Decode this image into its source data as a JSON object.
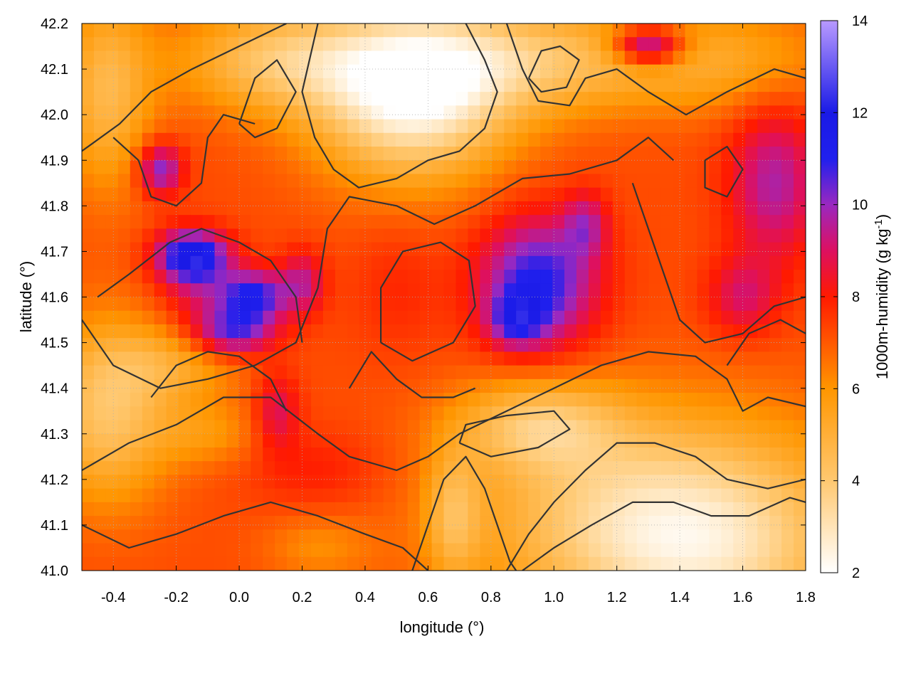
{
  "chart_data": {
    "type": "heatmap",
    "title": "",
    "xlabel": "longitude (°)",
    "ylabel": "latitude (°)",
    "colorbar_label": "1000m-humidity (g kg⁻¹)",
    "colorbar_label_parts": {
      "main": "1000m-humidity (g kg",
      "sup": "-1",
      "end": ")"
    },
    "xlim": [
      -0.5,
      1.8
    ],
    "ylim": [
      41.0,
      42.2
    ],
    "clim": [
      2,
      14
    ],
    "x_ticks": [
      -0.4,
      -0.2,
      0.0,
      0.2,
      0.4,
      0.6,
      0.8,
      1.0,
      1.2,
      1.4,
      1.6,
      1.8
    ],
    "x_tick_labels": [
      "-0.4",
      "-0.2",
      "0.0",
      "0.2",
      "0.4",
      "0.6",
      "0.8",
      "1.0",
      "1.2",
      "1.4",
      "1.6",
      "1.8"
    ],
    "y_ticks": [
      41.0,
      41.1,
      41.2,
      41.3,
      41.4,
      41.5,
      41.6,
      41.7,
      41.8,
      41.9,
      42.0,
      42.1,
      42.2
    ],
    "y_tick_labels": [
      "41.0",
      "41.1",
      "41.2",
      "41.3",
      "41.4",
      "41.5",
      "41.6",
      "41.7",
      "41.8",
      "41.9",
      "42.0",
      "42.1",
      "42.2"
    ],
    "colorbar_ticks": [
      2,
      4,
      6,
      8,
      10,
      12,
      14
    ],
    "colorbar_tick_labels": [
      "2",
      "4",
      "6",
      "8",
      "10",
      "12",
      "14"
    ],
    "grid": true,
    "colormap": [
      {
        "v": 2,
        "color": "#ffffff"
      },
      {
        "v": 4,
        "color": "#ffc870"
      },
      {
        "v": 6,
        "color": "#ff9600"
      },
      {
        "v": 8,
        "color": "#ff1a00"
      },
      {
        "v": 9,
        "color": "#dd1060"
      },
      {
        "v": 10,
        "color": "#9a28c0"
      },
      {
        "v": 11,
        "color": "#2020ee"
      },
      {
        "v": 12,
        "color": "#1a1ae6"
      },
      {
        "v": 14,
        "color": "#b89aff"
      }
    ],
    "field": {
      "base": 7.2,
      "features": [
        {
          "x": 0.55,
          "y": 42.05,
          "sx": 0.22,
          "sy": 0.13,
          "a": -5.2
        },
        {
          "x": 0.12,
          "y": 42.12,
          "sx": 0.22,
          "sy": 0.08,
          "a": -2.8
        },
        {
          "x": 0.95,
          "y": 42.12,
          "sx": 0.3,
          "sy": 0.08,
          "a": -2.6
        },
        {
          "x": 1.55,
          "y": 42.12,
          "sx": 0.25,
          "sy": 0.08,
          "a": -1.6
        },
        {
          "x": -0.42,
          "y": 42.05,
          "sx": 0.1,
          "sy": 0.15,
          "a": -2.5
        },
        {
          "x": 1.35,
          "y": 41.12,
          "sx": 0.4,
          "sy": 0.16,
          "a": -4.0
        },
        {
          "x": 1.5,
          "y": 41.0,
          "sx": 0.3,
          "sy": 0.12,
          "a": -1.5
        },
        {
          "x": 0.95,
          "y": 41.32,
          "sx": 0.18,
          "sy": 0.07,
          "a": -2.6
        },
        {
          "x": -0.42,
          "y": 41.35,
          "sx": 0.14,
          "sy": 0.14,
          "a": -3.0
        },
        {
          "x": -0.2,
          "y": 41.45,
          "sx": 0.15,
          "sy": 0.06,
          "a": -1.5
        },
        {
          "x": -0.1,
          "y": 41.3,
          "sx": 0.12,
          "sy": 0.05,
          "a": -1.2
        },
        {
          "x": 0.68,
          "y": 41.12,
          "sx": 0.06,
          "sy": 0.1,
          "a": -2.0
        },
        {
          "x": 0.25,
          "y": 41.05,
          "sx": 0.12,
          "sy": 0.05,
          "a": -1.0
        },
        {
          "x": 0.95,
          "y": 41.63,
          "sx": 0.13,
          "sy": 0.1,
          "a": 4.0
        },
        {
          "x": 0.88,
          "y": 41.55,
          "sx": 0.06,
          "sy": 0.04,
          "a": 2.5
        },
        {
          "x": 1.1,
          "y": 41.76,
          "sx": 0.05,
          "sy": 0.05,
          "a": 2.0
        },
        {
          "x": -0.15,
          "y": 41.69,
          "sx": 0.08,
          "sy": 0.04,
          "a": 5.0
        },
        {
          "x": 0.05,
          "y": 41.6,
          "sx": 0.07,
          "sy": 0.04,
          "a": 3.6
        },
        {
          "x": -0.02,
          "y": 41.52,
          "sx": 0.09,
          "sy": 0.035,
          "a": 3.2
        },
        {
          "x": 0.2,
          "y": 41.63,
          "sx": 0.05,
          "sy": 0.05,
          "a": 2.2
        },
        {
          "x": -0.1,
          "y": 41.6,
          "sx": 0.1,
          "sy": 0.05,
          "a": 1.6
        },
        {
          "x": -0.25,
          "y": 41.88,
          "sx": 0.05,
          "sy": 0.04,
          "a": 3.2
        },
        {
          "x": 1.3,
          "y": 42.15,
          "sx": 0.08,
          "sy": 0.03,
          "a": 4.2
        },
        {
          "x": 1.7,
          "y": 41.85,
          "sx": 0.1,
          "sy": 0.12,
          "a": 2.5
        },
        {
          "x": 1.6,
          "y": 41.6,
          "sx": 0.08,
          "sy": 0.06,
          "a": 1.8
        },
        {
          "x": 0.12,
          "y": 41.35,
          "sx": 0.05,
          "sy": 0.06,
          "a": 1.8
        },
        {
          "x": 0.5,
          "y": 41.62,
          "sx": 0.1,
          "sy": 0.1,
          "a": 0.6
        },
        {
          "x": 0.25,
          "y": 41.22,
          "sx": 0.15,
          "sy": 0.06,
          "a": 0.8
        }
      ]
    },
    "contours": [
      [
        [
          -0.5,
          41.92
        ],
        [
          -0.38,
          41.98
        ],
        [
          -0.28,
          42.05
        ],
        [
          -0.15,
          42.1
        ],
        [
          0.0,
          42.15
        ],
        [
          0.15,
          42.2
        ]
      ],
      [
        [
          0.25,
          42.2
        ],
        [
          0.2,
          42.05
        ],
        [
          0.24,
          41.95
        ],
        [
          0.3,
          41.88
        ],
        [
          0.38,
          41.84
        ],
        [
          0.5,
          41.86
        ],
        [
          0.6,
          41.9
        ],
        [
          0.7,
          41.92
        ],
        [
          0.78,
          41.97
        ],
        [
          0.82,
          42.05
        ],
        [
          0.78,
          42.12
        ],
        [
          0.72,
          42.2
        ]
      ],
      [
        [
          0.85,
          42.2
        ],
        [
          0.9,
          42.1
        ],
        [
          0.95,
          42.03
        ],
        [
          1.05,
          42.02
        ],
        [
          1.1,
          42.08
        ],
        [
          1.2,
          42.1
        ],
        [
          1.3,
          42.05
        ],
        [
          1.42,
          42.0
        ],
        [
          1.55,
          42.05
        ],
        [
          1.7,
          42.1
        ],
        [
          1.8,
          42.08
        ]
      ],
      [
        [
          -0.5,
          41.55
        ],
        [
          -0.4,
          41.45
        ],
        [
          -0.25,
          41.4
        ],
        [
          -0.1,
          41.42
        ],
        [
          0.05,
          41.45
        ],
        [
          0.18,
          41.5
        ],
        [
          0.25,
          41.62
        ],
        [
          0.28,
          41.75
        ],
        [
          0.35,
          41.82
        ],
        [
          0.5,
          41.8
        ],
        [
          0.62,
          41.76
        ],
        [
          0.75,
          41.8
        ],
        [
          0.9,
          41.86
        ],
        [
          1.05,
          41.87
        ],
        [
          1.2,
          41.9
        ],
        [
          1.3,
          41.95
        ],
        [
          1.38,
          41.9
        ]
      ],
      [
        [
          0.45,
          41.5
        ],
        [
          0.55,
          41.46
        ],
        [
          0.68,
          41.5
        ],
        [
          0.75,
          41.58
        ],
        [
          0.73,
          41.68
        ],
        [
          0.64,
          41.72
        ],
        [
          0.52,
          41.7
        ],
        [
          0.45,
          41.62
        ],
        [
          0.45,
          41.5
        ]
      ],
      [
        [
          -0.5,
          41.22
        ],
        [
          -0.35,
          41.28
        ],
        [
          -0.2,
          41.32
        ],
        [
          -0.05,
          41.38
        ],
        [
          0.1,
          41.38
        ],
        [
          0.25,
          41.3
        ],
        [
          0.35,
          41.25
        ],
        [
          0.5,
          41.22
        ],
        [
          0.6,
          41.25
        ],
        [
          0.7,
          41.3
        ],
        [
          0.85,
          41.35
        ],
        [
          1.0,
          41.4
        ],
        [
          1.15,
          41.45
        ],
        [
          1.3,
          41.48
        ],
        [
          1.45,
          41.47
        ],
        [
          1.55,
          41.42
        ],
        [
          1.6,
          41.35
        ],
        [
          1.68,
          41.38
        ],
        [
          1.8,
          41.36
        ]
      ],
      [
        [
          0.7,
          41.28
        ],
        [
          0.8,
          41.25
        ],
        [
          0.95,
          41.27
        ],
        [
          1.05,
          41.31
        ],
        [
          1.0,
          41.35
        ],
        [
          0.85,
          41.34
        ],
        [
          0.72,
          41.32
        ],
        [
          0.7,
          41.28
        ]
      ],
      [
        [
          0.85,
          41.0
        ],
        [
          0.92,
          41.08
        ],
        [
          1.0,
          41.15
        ],
        [
          1.1,
          41.22
        ],
        [
          1.2,
          41.28
        ],
        [
          1.32,
          41.28
        ],
        [
          1.45,
          41.25
        ],
        [
          1.55,
          41.2
        ],
        [
          1.68,
          41.18
        ],
        [
          1.8,
          41.2
        ]
      ],
      [
        [
          0.9,
          41.0
        ],
        [
          1.0,
          41.05
        ],
        [
          1.12,
          41.1
        ],
        [
          1.25,
          41.15
        ],
        [
          1.38,
          41.15
        ],
        [
          1.5,
          41.12
        ],
        [
          1.62,
          41.12
        ],
        [
          1.75,
          41.16
        ],
        [
          1.8,
          41.15
        ]
      ],
      [
        [
          -0.5,
          41.1
        ],
        [
          -0.35,
          41.05
        ],
        [
          -0.2,
          41.08
        ],
        [
          -0.05,
          41.12
        ],
        [
          0.1,
          41.15
        ],
        [
          0.25,
          41.12
        ],
        [
          0.4,
          41.08
        ],
        [
          0.52,
          41.05
        ],
        [
          0.6,
          41.0
        ]
      ],
      [
        [
          0.55,
          41.0
        ],
        [
          0.6,
          41.1
        ],
        [
          0.65,
          41.2
        ],
        [
          0.72,
          41.25
        ],
        [
          0.78,
          41.18
        ],
        [
          0.82,
          41.1
        ],
        [
          0.86,
          41.02
        ],
        [
          0.88,
          41.0
        ]
      ],
      [
        [
          -0.45,
          41.6
        ],
        [
          -0.35,
          41.65
        ],
        [
          -0.22,
          41.72
        ],
        [
          -0.12,
          41.75
        ],
        [
          0.0,
          41.72
        ],
        [
          0.1,
          41.68
        ],
        [
          0.18,
          41.6
        ],
        [
          0.2,
          41.5
        ]
      ],
      [
        [
          -0.4,
          41.95
        ],
        [
          -0.32,
          41.9
        ],
        [
          -0.28,
          41.82
        ],
        [
          -0.2,
          41.8
        ],
        [
          -0.12,
          41.85
        ],
        [
          -0.1,
          41.95
        ],
        [
          -0.05,
          42.0
        ],
        [
          0.05,
          41.98
        ]
      ],
      [
        [
          1.25,
          41.85
        ],
        [
          1.3,
          41.75
        ],
        [
          1.35,
          41.65
        ],
        [
          1.4,
          41.55
        ],
        [
          1.48,
          41.5
        ],
        [
          1.6,
          41.52
        ],
        [
          1.7,
          41.58
        ],
        [
          1.8,
          41.6
        ]
      ],
      [
        [
          0.0,
          41.98
        ],
        [
          0.05,
          42.08
        ],
        [
          0.12,
          42.12
        ],
        [
          0.18,
          42.05
        ],
        [
          0.12,
          41.97
        ],
        [
          0.05,
          41.95
        ],
        [
          0.0,
          41.98
        ]
      ],
      [
        [
          0.92,
          42.08
        ],
        [
          0.96,
          42.14
        ],
        [
          1.02,
          42.15
        ],
        [
          1.08,
          42.12
        ],
        [
          1.04,
          42.06
        ],
        [
          0.96,
          42.05
        ],
        [
          0.92,
          42.08
        ]
      ],
      [
        [
          1.48,
          41.9
        ],
        [
          1.55,
          41.93
        ],
        [
          1.6,
          41.88
        ],
        [
          1.55,
          41.82
        ],
        [
          1.48,
          41.84
        ],
        [
          1.48,
          41.9
        ]
      ],
      [
        [
          -0.28,
          41.38
        ],
        [
          -0.2,
          41.45
        ],
        [
          -0.1,
          41.48
        ],
        [
          0.0,
          41.47
        ],
        [
          0.1,
          41.42
        ],
        [
          0.15,
          41.35
        ]
      ],
      [
        [
          0.35,
          41.4
        ],
        [
          0.42,
          41.48
        ],
        [
          0.5,
          41.42
        ],
        [
          0.58,
          41.38
        ],
        [
          0.68,
          41.38
        ],
        [
          0.75,
          41.4
        ]
      ],
      [
        [
          1.55,
          41.45
        ],
        [
          1.62,
          41.52
        ],
        [
          1.72,
          41.55
        ],
        [
          1.8,
          41.52
        ]
      ]
    ]
  }
}
